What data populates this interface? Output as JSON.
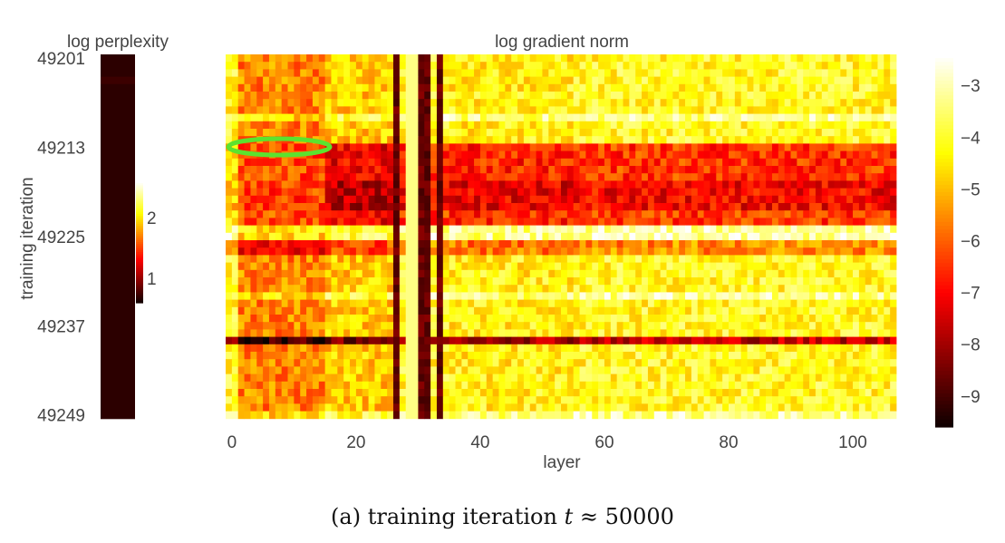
{
  "chart_data": [
    {
      "type": "heatmap",
      "title": "log perplexity",
      "ylabel": "training iteration",
      "y_ticks": [
        49201,
        49213,
        49225,
        49237,
        49249
      ],
      "y_range": [
        49201,
        49249
      ],
      "colormap": "hot",
      "colorbar_ticks": [
        2,
        1
      ],
      "colorbar_range": [
        0.6,
        2.6
      ],
      "values": [
        0.7,
        0.7,
        0.7,
        0.75,
        0.7,
        0.7,
        0.7,
        0.7,
        0.7,
        0.7,
        0.7,
        0.7,
        0.7,
        0.7,
        0.7,
        0.7,
        0.7,
        0.7,
        0.7,
        0.7,
        0.7,
        0.7,
        0.7,
        0.7,
        0.7,
        0.7,
        0.7,
        0.7,
        0.7,
        0.7,
        0.7,
        0.7,
        0.7,
        0.7,
        0.7,
        0.7,
        0.7,
        0.7,
        0.7,
        0.7,
        0.7,
        0.7,
        0.7,
        0.7,
        0.7,
        0.7,
        0.7,
        0.7,
        0.7
      ]
    },
    {
      "type": "heatmap",
      "title": "log gradient norm",
      "xlabel": "layer",
      "x_ticks": [
        0,
        20,
        40,
        60,
        80,
        100
      ],
      "x_range": [
        -1,
        107
      ],
      "y_range": [
        49201,
        49249
      ],
      "colormap": "hot",
      "colorbar_ticks": [
        -3,
        -4,
        -5,
        -6,
        -7,
        -8,
        -9
      ],
      "colorbar_range": [
        -9.6,
        -2.4
      ]
    }
  ],
  "caption": {
    "prefix": "(a) training iteration ",
    "var": "t",
    "suffix": " ≈ 50000"
  },
  "colors": {
    "annotation_circle": "#5ce22e"
  }
}
